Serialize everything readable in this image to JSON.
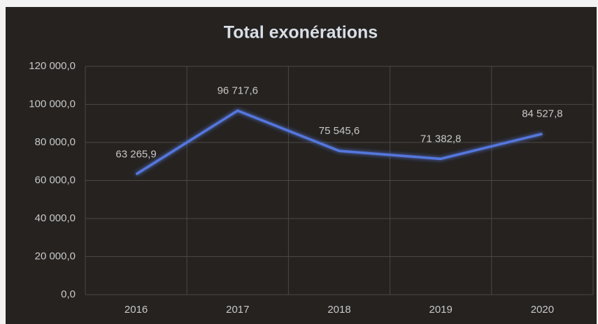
{
  "chart_data": {
    "type": "line",
    "title": "Total exonérations",
    "categories": [
      "2016",
      "2017",
      "2018",
      "2019",
      "2020"
    ],
    "series": [
      {
        "name": "Total exonérations",
        "color": "#5577dd",
        "values": [
          63265.9,
          96717.6,
          75545.6,
          71382.8,
          84527.8
        ],
        "value_labels": [
          "63 265,9",
          "96 717,6",
          "75 545,6",
          "71 382,8",
          "84 527,8"
        ]
      }
    ],
    "ylim": [
      0,
      120000
    ],
    "yticks": [
      {
        "value": 0,
        "label": "0,0"
      },
      {
        "value": 20000,
        "label": "20 000,0"
      },
      {
        "value": 40000,
        "label": "40 000,0"
      },
      {
        "value": 60000,
        "label": "60 000,0"
      },
      {
        "value": 80000,
        "label": "80 000,0"
      },
      {
        "value": 100000,
        "label": "100 000,0"
      },
      {
        "value": 120000,
        "label": "120 000,0"
      }
    ],
    "grid": true
  }
}
